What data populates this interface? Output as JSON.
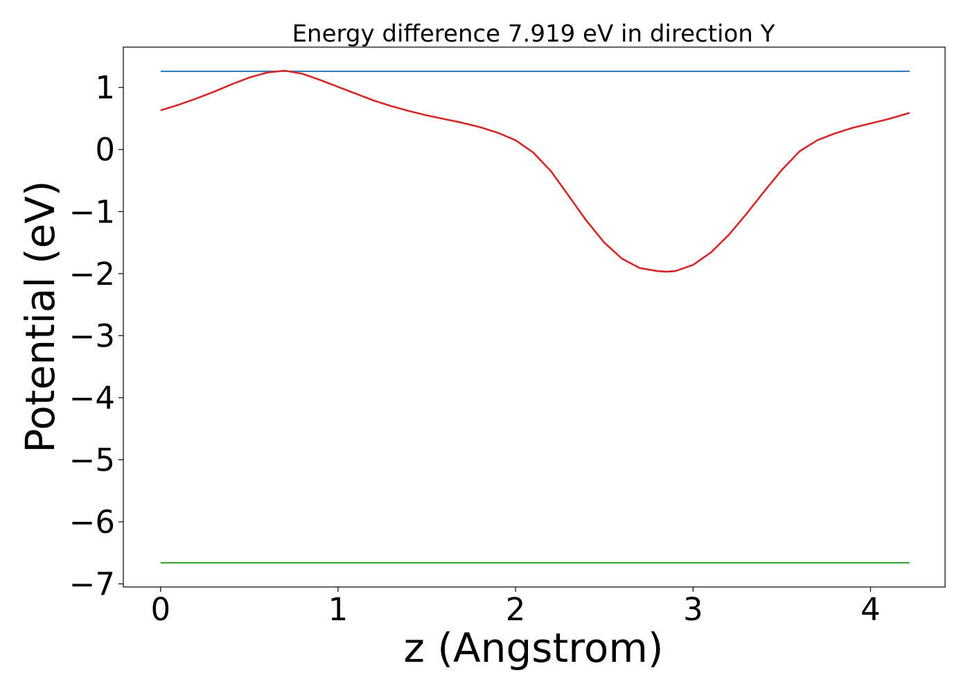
{
  "chart_data": {
    "type": "line",
    "title": "Energy difference 7.919 eV in direction Y",
    "xlabel": "z (Angstrom)",
    "ylabel": "Potential (eV)",
    "xlim": [
      -0.21,
      4.42
    ],
    "ylim": [
      -7.05,
      1.65
    ],
    "x_ticks": [
      0,
      1,
      2,
      3,
      4
    ],
    "x_tick_labels": [
      "0",
      "1",
      "2",
      "3",
      "4"
    ],
    "y_ticks": [
      1,
      0,
      -1,
      -2,
      -3,
      -4,
      -5,
      -6,
      -7
    ],
    "y_tick_labels": [
      "1",
      "0",
      "−1",
      "−2",
      "−3",
      "−4",
      "−5",
      "−6",
      "−7"
    ],
    "grid": false,
    "series": [
      {
        "color": "#1f77b4",
        "x": [
          0,
          4.22
        ],
        "y": [
          1.26,
          1.26
        ]
      },
      {
        "color": "#2ca02c",
        "x": [
          0,
          4.22
        ],
        "y": [
          -6.66,
          -6.66
        ]
      },
      {
        "color": "#d62728",
        "x": [
          0,
          0.1,
          0.2,
          0.3,
          0.4,
          0.5,
          0.6,
          0.7,
          0.8,
          0.9,
          1.0,
          1.1,
          1.2,
          1.3,
          1.4,
          1.5,
          1.6,
          1.7,
          1.8,
          1.9,
          2.0,
          2.1,
          2.2,
          2.3,
          2.4,
          2.5,
          2.6,
          2.7,
          2.8,
          2.85,
          2.9,
          3.0,
          3.1,
          3.2,
          3.3,
          3.4,
          3.5,
          3.6,
          3.7,
          3.8,
          3.9,
          4.0,
          4.1,
          4.22
        ],
        "y": [
          0.63,
          0.72,
          0.82,
          0.93,
          1.05,
          1.16,
          1.24,
          1.27,
          1.22,
          1.12,
          1.01,
          0.9,
          0.79,
          0.7,
          0.62,
          0.55,
          0.49,
          0.43,
          0.36,
          0.27,
          0.15,
          -0.05,
          -0.35,
          -0.75,
          -1.15,
          -1.5,
          -1.76,
          -1.91,
          -1.96,
          -1.97,
          -1.96,
          -1.86,
          -1.66,
          -1.38,
          -1.04,
          -0.68,
          -0.33,
          -0.03,
          0.15,
          0.26,
          0.35,
          0.42,
          0.49,
          0.59
        ]
      }
    ]
  }
}
